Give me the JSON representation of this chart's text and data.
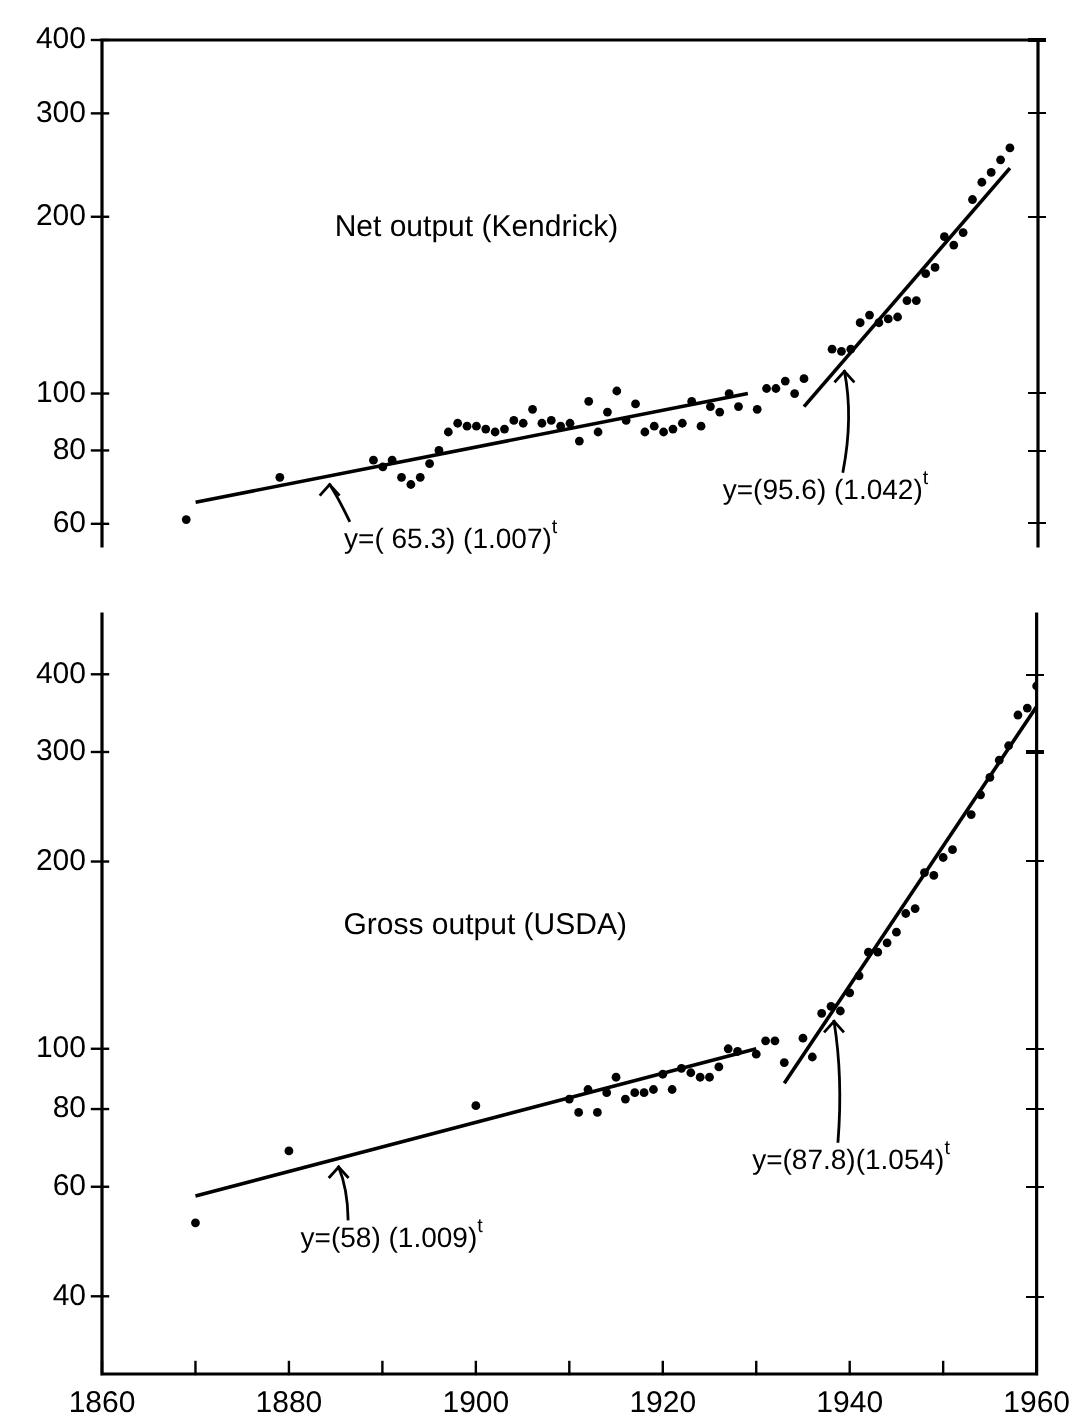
{
  "chart_data": [
    {
      "type": "scatter",
      "title": "Net output (Kendrick)",
      "xlim": [
        1860,
        1960
      ],
      "ylim": [
        55,
        400
      ],
      "yticks": [
        60,
        80,
        100,
        200,
        300,
        400
      ],
      "log": true,
      "grid": false,
      "legend": false,
      "tick_labels": "y",
      "line_style": "solid",
      "annotations": [
        {
          "text": "y=( 65.3) (1.007)$^{t}$",
          "x": 1884,
          "y": 72.2
        },
        {
          "text": "y=(95.6) (1.042)$^{t}$",
          "x": 1939,
          "y": 112.6
        }
      ],
      "series": [
        {
          "marker": "circle",
          "color": "#000000",
          "x": [
            1869,
            1879,
            1889,
            1890,
            1891,
            1892,
            1893,
            1894,
            1895,
            1896,
            1897,
            1898,
            1899,
            1900,
            1901,
            1902,
            1903,
            1904,
            1905,
            1906,
            1907,
            1908,
            1909,
            1910,
            1911,
            1912,
            1913,
            1914,
            1915,
            1916,
            1917,
            1918,
            1919,
            1920,
            1921,
            1922,
            1923,
            1924,
            1925,
            1926,
            1927,
            1928,
            1930,
            1931,
            1932,
            1933,
            1934,
            1935,
            1938,
            1939,
            1940,
            1941,
            1942,
            1943,
            1944,
            1945,
            1946,
            1947,
            1948,
            1949,
            1950,
            1951,
            1952,
            1953,
            1954,
            1955,
            1956,
            1957
          ],
          "values": [
            61,
            72,
            77,
            75,
            77,
            72,
            70,
            72,
            76,
            80,
            86,
            89,
            88,
            88,
            87,
            86,
            87,
            90,
            89,
            94,
            89,
            90,
            88,
            89,
            83,
            97,
            86,
            93,
            101,
            90,
            96,
            86,
            88,
            86,
            87,
            89,
            97,
            88,
            95,
            93,
            100,
            95,
            94,
            102,
            102,
            105,
            100,
            106,
            119,
            118,
            119,
            132,
            136,
            132,
            134,
            135,
            144,
            144,
            160,
            164,
            185,
            179,
            188,
            214,
            229,
            238,
            250,
            262
          ]
        },
        {
          "type": "line",
          "marker": "none",
          "color": "#000000",
          "x": [
            1870,
            1929
          ],
          "values": [
            65.3,
            100
          ]
        },
        {
          "type": "line",
          "marker": "none",
          "color": "#000000",
          "x": [
            1935,
            1957
          ],
          "values": [
            95,
            242
          ]
        }
      ]
    },
    {
      "type": "scatter",
      "title": "Gross output (USDA)",
      "xlim": [
        1860,
        1960
      ],
      "xticks": [
        1860,
        {
          "value": 1870,
          "label": null
        },
        1880,
        {
          "value": 1890,
          "label": null
        },
        1900,
        {
          "value": 1910,
          "label": null
        },
        1920,
        {
          "value": 1930,
          "label": null
        },
        1940,
        {
          "value": 1950,
          "label": null
        },
        1960
      ],
      "ylim": [
        30,
        500
      ],
      "yticks": [
        40,
        60,
        80,
        100,
        200,
        300,
        400
      ],
      "log": true,
      "grid": false,
      "legend": false,
      "line_style": "solid",
      "annotations": [
        {
          "text": "y=(58) (1.009)$^{t}$",
          "x": 1885,
          "y": 66.5
        },
        {
          "text": "y=(87.8)(1.054)$^{t}$",
          "x": 1938,
          "y": 114
        }
      ],
      "series": [
        {
          "marker": "circle",
          "color": "#000000",
          "x": [
            1870,
            1880,
            1900,
            1910,
            1911,
            1912,
            1913,
            1914,
            1915,
            1916,
            1917,
            1918,
            1919,
            1920,
            1921,
            1922,
            1923,
            1924,
            1925,
            1926,
            1927,
            1928,
            1930,
            1931,
            1932,
            1933,
            1935,
            1936,
            1937,
            1938,
            1939,
            1940,
            1941,
            1942,
            1943,
            1944,
            1945,
            1946,
            1947,
            1948,
            1949,
            1950,
            1951,
            1953,
            1954,
            1955,
            1956,
            1957,
            1958,
            1959,
            1960
          ],
          "values": [
            52.5,
            68.5,
            81,
            83,
            79,
            86,
            79,
            85,
            90,
            83,
            85,
            85,
            86,
            91,
            86,
            93,
            91.5,
            90,
            90,
            93.5,
            100,
            99,
            98,
            103,
            103,
            95,
            104,
            97,
            114,
            117,
            115,
            123,
            131,
            143,
            143,
            148,
            154,
            165,
            168,
            192,
            190,
            203,
            209,
            238,
            256,
            273,
            291,
            307,
            344,
            353,
            383
          ]
        },
        {
          "type": "line",
          "marker": "none",
          "color": "#000000",
          "x": [
            1870,
            1930
          ],
          "values": [
            58,
            100
          ]
        },
        {
          "type": "line",
          "marker": "none",
          "color": "#000000",
          "x": [
            1933,
            1960
          ],
          "values": [
            88,
            355
          ]
        }
      ]
    }
  ]
}
